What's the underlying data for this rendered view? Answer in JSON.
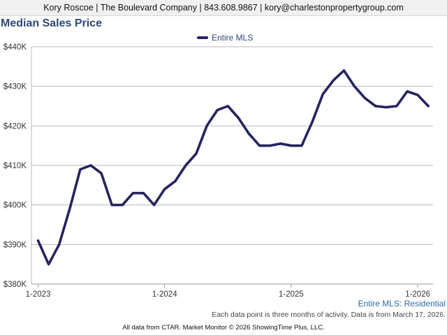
{
  "header": {
    "contact": "Kory Roscoe | The Boulevard Company | 843.608.9867 | kory@charlestonpropertygroup.com"
  },
  "footer": {
    "series_label": "Entire MLS: Residential",
    "note": "Each data point is three months of activity. Data is from March 17, 2026.",
    "credit": "All data from CTAR. Market Monitor © 2026 ShowingTime Plus, LLC."
  },
  "colors": {
    "series": "#24245e",
    "grid": "#b8b8b8",
    "title": "#2b4a7a"
  },
  "chart_data": {
    "type": "line",
    "title": "Median Sales Price",
    "xlabel": "",
    "ylabel": "",
    "ylim": [
      380000,
      440000
    ],
    "yticks": [
      380000,
      390000,
      400000,
      410000,
      420000,
      430000,
      440000
    ],
    "ytick_labels": [
      "$380K",
      "$390K",
      "$400K",
      "$410K",
      "$420K",
      "$430K",
      "$440K"
    ],
    "x_range": [
      "2023-01",
      "2026-02"
    ],
    "xticks": [
      "2023-01",
      "2024-01",
      "2025-01",
      "2026-01"
    ],
    "xtick_labels": [
      "1-2023",
      "1-2024",
      "1-2025",
      "1-2026"
    ],
    "grid": true,
    "legend_position": "top-center",
    "series": [
      {
        "name": "Entire MLS",
        "x": [
          "2023-01",
          "2023-02",
          "2023-03",
          "2023-04",
          "2023-05",
          "2023-06",
          "2023-07",
          "2023-08",
          "2023-09",
          "2023-10",
          "2023-11",
          "2023-12",
          "2024-01",
          "2024-02",
          "2024-03",
          "2024-04",
          "2024-05",
          "2024-06",
          "2024-07",
          "2024-08",
          "2024-09",
          "2024-10",
          "2024-11",
          "2024-12",
          "2025-01",
          "2025-02",
          "2025-03",
          "2025-04",
          "2025-05",
          "2025-06",
          "2025-07",
          "2025-08",
          "2025-09",
          "2025-10",
          "2025-11",
          "2025-12",
          "2026-01",
          "2026-02"
        ],
        "values": [
          391000,
          385000,
          390000,
          399000,
          409000,
          410000,
          408000,
          400000,
          400000,
          403000,
          403000,
          400000,
          404000,
          406000,
          410000,
          413000,
          420000,
          424000,
          425000,
          422000,
          418000,
          415000,
          415000,
          415500,
          415000,
          415000,
          421000,
          428000,
          431500,
          434000,
          430000,
          427000,
          425000,
          424700,
          425000,
          428700,
          427800,
          425000
        ]
      }
    ]
  }
}
